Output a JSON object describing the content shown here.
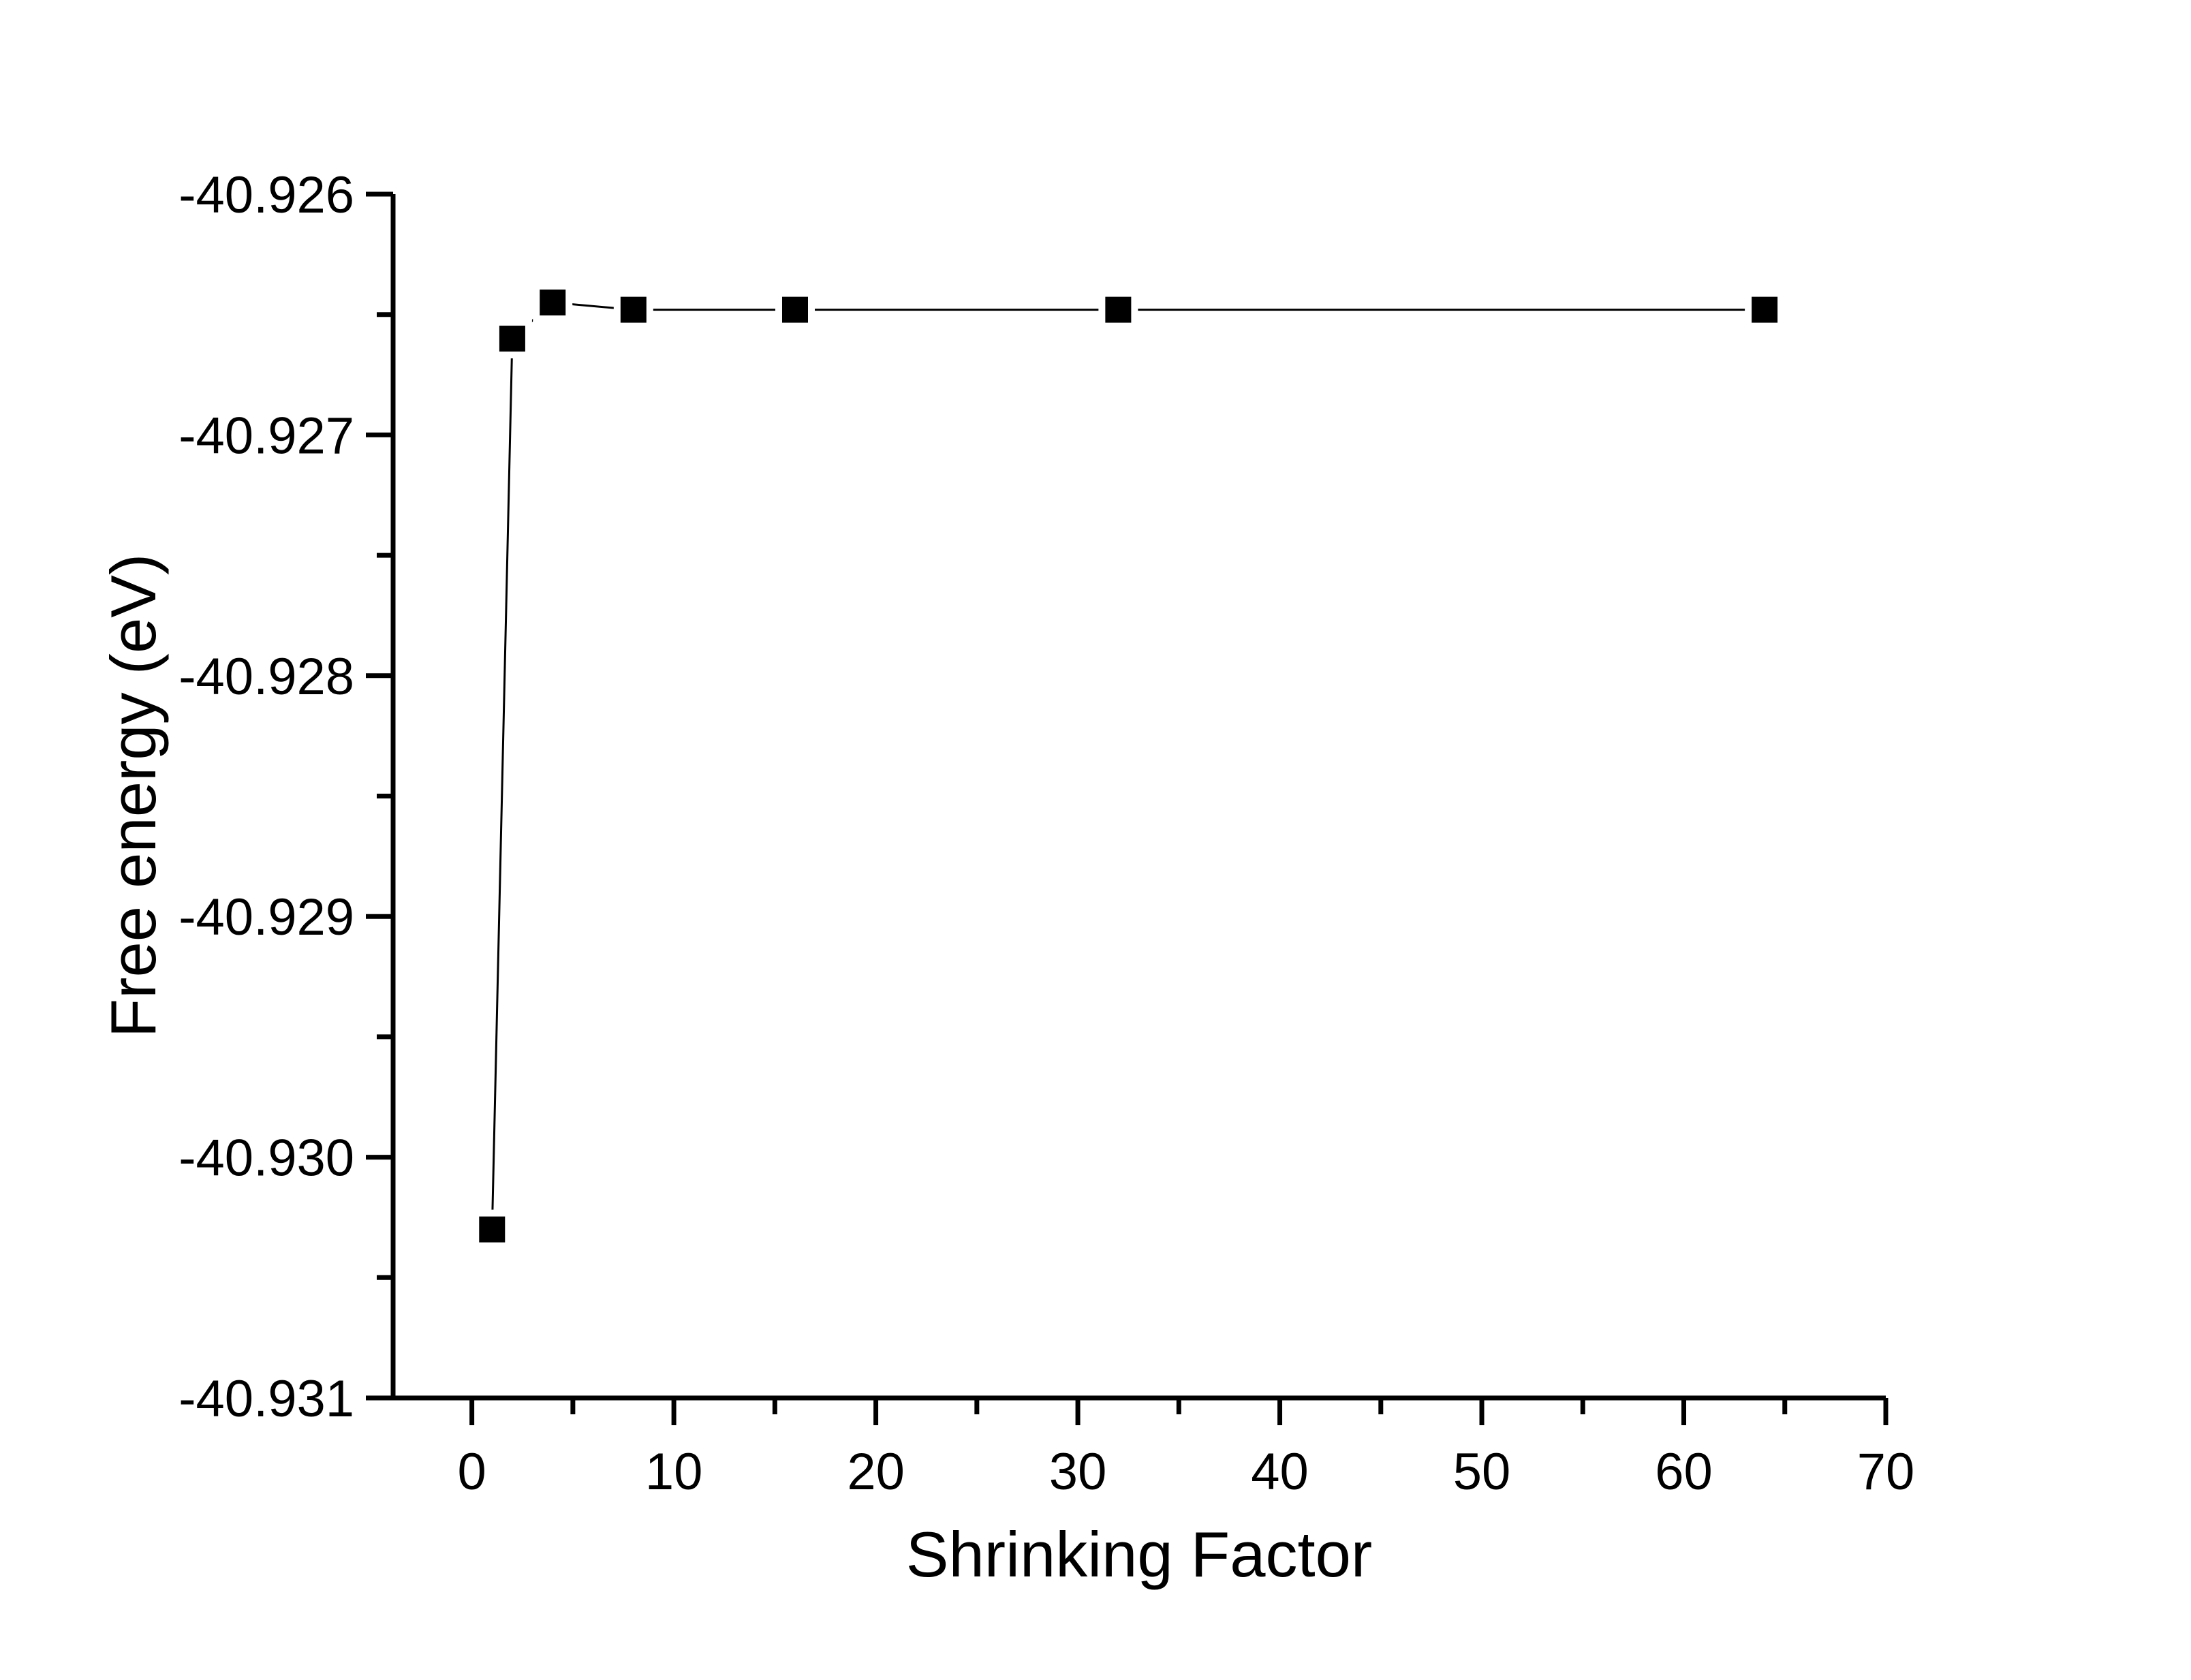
{
  "figure": {
    "background_color": "#ffffff",
    "ink_color": "#000000"
  },
  "chart_data": {
    "type": "line",
    "title": "",
    "xlabel": "Shrinking Factor",
    "ylabel": "Free energy (eV)",
    "x": [
      1,
      2,
      4,
      8,
      16,
      32,
      64
    ],
    "y": [
      -40.9303,
      -40.9266,
      -40.92645,
      -40.92648,
      -40.92648,
      -40.92648,
      -40.92648
    ],
    "xlim": [
      -3.9,
      70
    ],
    "ylim": [
      -40.931,
      -40.926
    ],
    "x_major_ticks": [
      0,
      10,
      20,
      30,
      40,
      50,
      60,
      70
    ],
    "x_tick_labels": [
      "0",
      "10",
      "20",
      "30",
      "40",
      "50",
      "60",
      "70"
    ],
    "x_minor_ticks": [
      5,
      15,
      25,
      35,
      45,
      55,
      65
    ],
    "y_major_ticks": [
      -40.926,
      -40.927,
      -40.928,
      -40.929,
      -40.93,
      -40.931
    ],
    "y_tick_labels": [
      "-40.926",
      "-40.927",
      "-40.928",
      "-40.929",
      "-40.930",
      "-40.931"
    ],
    "y_minor_ticks": [
      -40.9265,
      -40.9275,
      -40.9285,
      -40.9295,
      -40.9305
    ],
    "marker": "filled-square",
    "marker_color": "#000000",
    "line_color": "#000000",
    "grid": false,
    "legend": null
  }
}
